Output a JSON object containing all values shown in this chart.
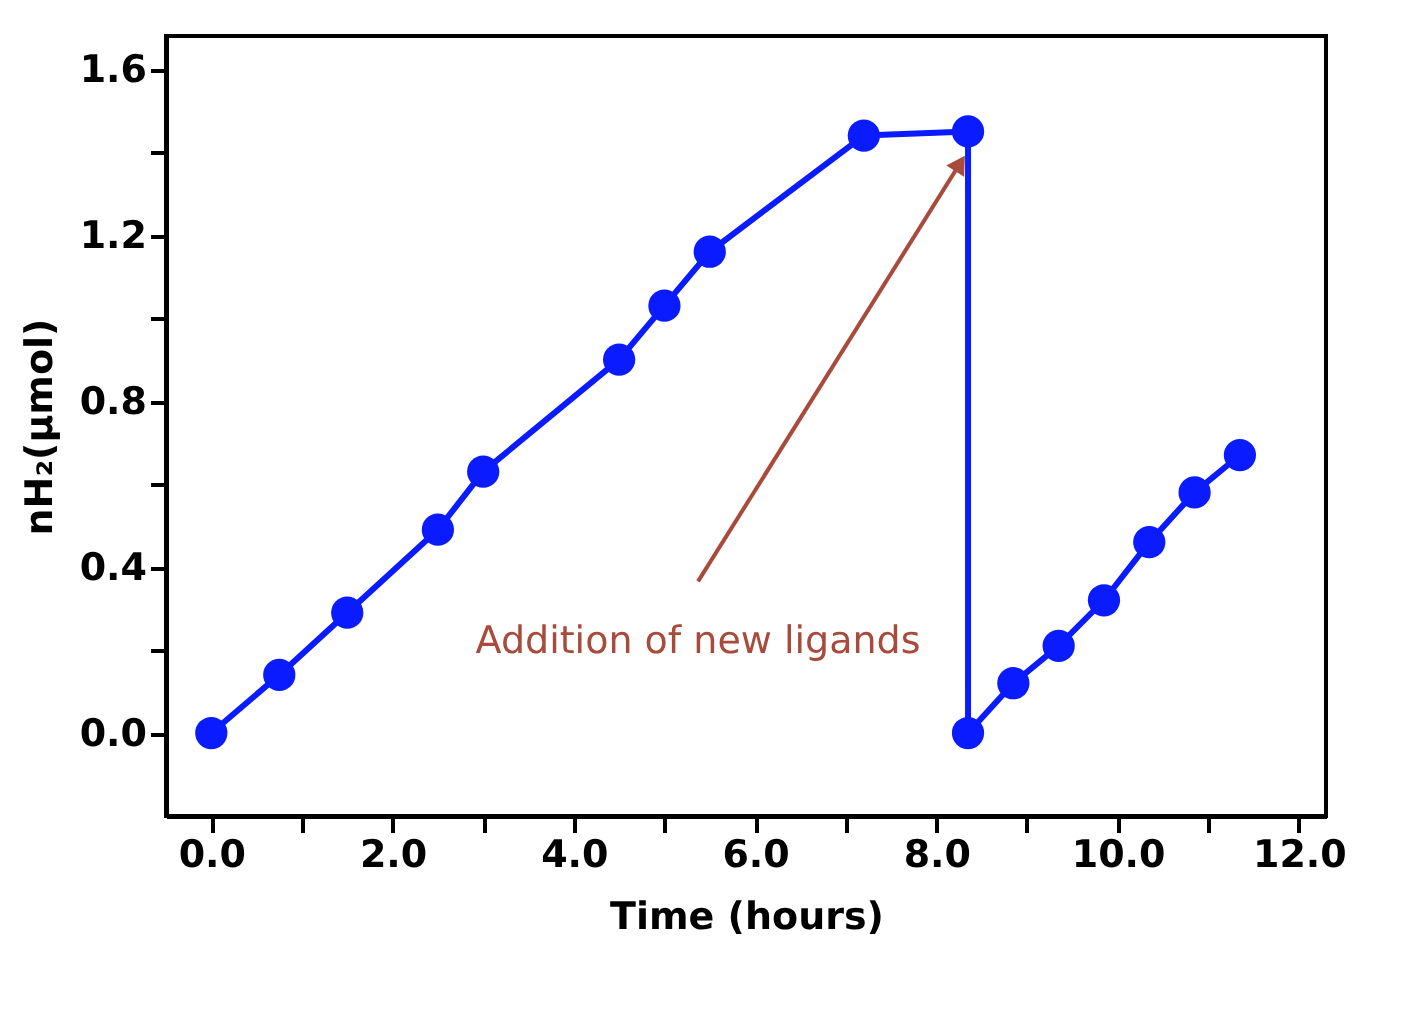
{
  "chart_data": {
    "type": "line",
    "xlabel": "Time (hours)",
    "ylabel": "nH₂(μmol)",
    "series": [
      {
        "color": "#0a1cff",
        "x": [
          0,
          0.75,
          1.5,
          2.5,
          3.0,
          4.5,
          5.0,
          5.5,
          7.2,
          8.35,
          8.35,
          8.85,
          9.35,
          9.85,
          10.35,
          10.85,
          11.35
        ],
        "values": [
          0,
          0.14,
          0.29,
          0.49,
          0.63,
          0.9,
          1.03,
          1.16,
          1.44,
          1.45,
          0,
          0.12,
          0.21,
          0.32,
          0.46,
          0.58,
          0.67
        ]
      }
    ],
    "xlim": [
      -0.5,
      12.3
    ],
    "ylim": [
      -0.2,
      1.68
    ],
    "xticks": [
      {
        "value": 0,
        "label": "0.0"
      },
      {
        "value": 1,
        "label": null
      },
      {
        "value": 2,
        "label": "2.0"
      },
      {
        "value": 3,
        "label": null
      },
      {
        "value": 4,
        "label": "4.0"
      },
      {
        "value": 5,
        "label": null
      },
      {
        "value": 6,
        "label": "6.0"
      },
      {
        "value": 7,
        "label": null
      },
      {
        "value": 8,
        "label": "8.0"
      },
      {
        "value": 9,
        "label": null
      },
      {
        "value": 10,
        "label": "10.0"
      },
      {
        "value": 11,
        "label": null
      },
      {
        "value": 12,
        "label": "12.0"
      }
    ],
    "yticks": [
      {
        "value": 0,
        "label": "0.0"
      },
      {
        "value": 0.2,
        "label": null
      },
      {
        "value": 0.4,
        "label": "0.4"
      },
      {
        "value": 0.6,
        "label": null
      },
      {
        "value": 0.8,
        "label": "0.8"
      },
      {
        "value": 1.0,
        "label": null
      },
      {
        "value": 1.2,
        "label": "1.2"
      },
      {
        "value": 1.4,
        "label": null
      },
      {
        "value": 1.6,
        "label": "1.6"
      }
    ],
    "annotations": [
      "Addition of new ligands"
    ],
    "marker": "circle",
    "line_style": "solid",
    "grid": false
  }
}
